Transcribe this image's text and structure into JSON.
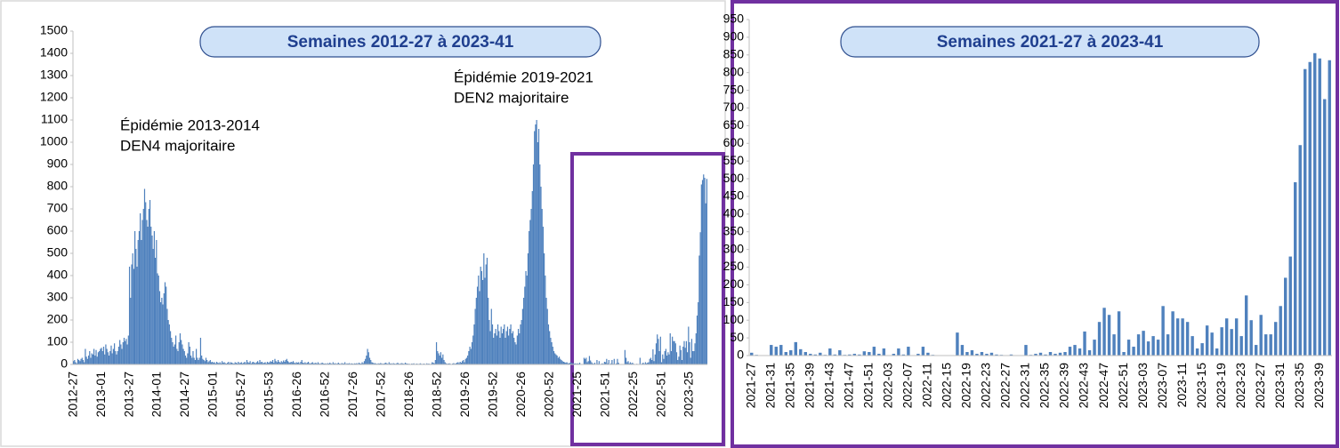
{
  "chart_data": [
    {
      "type": "bar",
      "title": "Semaines 2012-27 à 2023-41",
      "color": "#4f81bd",
      "annotations": [
        "Épidémie 2013-2014",
        "DEN4 majoritaire",
        "Épidémie 2019-2021",
        "DEN2 majoritaire"
      ],
      "ylim": [
        0,
        1500
      ],
      "yticks": [
        0,
        100,
        200,
        300,
        400,
        500,
        600,
        700,
        800,
        900,
        1000,
        1100,
        1200,
        1300,
        1400,
        1500
      ],
      "categories": [
        "2012-27",
        null,
        null,
        null,
        null,
        null,
        null,
        null,
        null,
        null,
        null,
        null,
        null,
        null,
        null,
        null,
        null,
        null,
        null,
        null,
        null,
        null,
        null,
        null,
        null,
        null,
        "2013-01",
        null,
        null,
        null,
        null,
        null,
        null,
        null,
        null,
        null,
        null,
        null,
        null,
        null,
        null,
        null,
        null,
        null,
        null,
        null,
        null,
        null,
        null,
        null,
        null,
        null,
        "2013-27",
        null,
        null,
        null,
        null,
        null,
        null,
        null,
        null,
        null,
        null,
        null,
        null,
        null,
        null,
        null,
        null,
        null,
        null,
        null,
        null,
        null,
        null,
        null,
        null,
        null,
        "2014-01",
        null,
        null,
        null,
        null,
        null,
        null,
        null,
        null,
        null,
        null,
        null,
        null,
        null,
        null,
        null,
        null,
        null,
        null,
        null,
        null,
        null,
        null,
        null,
        null,
        null,
        "2014-27",
        null,
        null,
        null,
        null,
        null,
        null,
        null,
        null,
        null,
        null,
        null,
        null,
        null,
        null,
        null,
        null,
        null,
        null,
        null,
        null,
        null,
        null,
        null,
        null,
        null,
        "2015-01",
        null,
        null,
        null,
        null,
        null,
        null,
        null,
        null,
        null,
        null,
        null,
        null,
        null,
        null,
        null,
        null,
        null,
        null,
        null,
        null,
        null,
        null,
        null,
        null,
        null,
        "2015-27",
        null,
        null,
        null,
        null,
        null,
        null,
        null,
        null,
        null,
        null,
        null,
        null,
        null,
        null,
        null,
        null,
        null,
        null,
        null,
        null,
        null,
        null,
        null,
        null,
        null,
        "2015-53",
        null,
        null,
        null,
        null,
        null,
        null,
        null,
        null,
        null,
        null,
        null,
        null,
        null,
        null,
        null,
        null,
        null,
        null,
        null,
        null,
        null,
        null,
        null,
        null,
        null,
        "2016-26",
        null,
        null,
        null,
        null,
        null,
        null,
        null,
        null,
        null,
        null,
        null,
        null,
        null,
        null,
        null,
        null,
        null,
        null,
        null,
        null,
        null,
        null,
        null,
        null,
        null,
        "2016-52",
        null,
        null,
        null,
        null,
        null,
        null,
        null,
        null,
        null,
        null,
        null,
        null,
        null,
        null,
        null,
        null,
        null,
        null,
        null,
        null,
        null,
        null,
        null,
        null,
        null,
        "2017-26",
        null,
        null,
        null,
        null,
        null,
        null,
        null,
        null,
        null,
        null,
        null,
        null,
        null,
        null,
        null,
        null,
        null,
        null,
        null,
        null,
        null,
        null,
        null,
        null,
        null,
        "2017-52",
        null,
        null,
        null,
        null,
        null,
        null,
        null,
        null,
        null,
        null,
        null,
        null,
        null,
        null,
        null,
        null,
        null,
        null,
        null,
        null,
        null,
        null,
        null,
        null,
        null,
        "2018-26",
        null,
        null,
        null,
        null,
        null,
        null,
        null,
        null,
        null,
        null,
        null,
        null,
        null,
        null,
        null,
        null,
        null,
        null,
        null,
        null,
        null,
        null,
        null,
        null,
        null,
        "2018-52",
        null,
        null,
        null,
        null,
        null,
        null,
        null,
        null,
        null,
        null,
        null,
        null,
        null,
        null,
        null,
        null,
        null,
        null,
        null,
        null,
        null,
        null,
        null,
        null,
        null,
        "2019-26",
        null,
        null,
        null,
        null,
        null,
        null,
        null,
        null,
        null,
        null,
        null,
        null,
        null,
        null,
        null,
        null,
        null,
        null,
        null,
        null,
        null,
        null,
        null,
        null,
        null,
        "2019-52",
        null,
        null,
        null,
        null,
        null,
        null,
        null,
        null,
        null,
        null,
        null,
        null,
        null,
        null,
        null,
        null,
        null,
        null,
        null,
        null,
        null,
        null,
        null,
        null,
        null,
        "2020-26",
        null,
        null,
        null,
        null,
        null,
        null,
        null,
        null,
        null,
        null,
        null,
        null,
        null,
        null,
        null,
        null,
        null,
        null,
        null,
        null,
        null,
        null,
        null,
        null,
        null,
        "2020-52",
        null,
        null,
        null,
        null,
        null,
        null,
        null,
        null,
        null,
        null,
        null,
        null,
        null,
        null,
        null,
        null,
        null,
        null,
        null,
        null,
        null,
        null,
        null,
        null,
        null,
        "2021-25",
        null,
        null,
        null,
        null,
        null,
        null,
        null,
        null,
        null,
        null,
        null,
        null,
        null,
        null,
        null,
        null,
        null,
        null,
        null,
        null,
        null,
        null,
        null,
        null,
        null,
        "2021-51",
        null,
        null,
        null,
        null,
        null,
        null,
        null,
        null,
        null,
        null,
        null,
        null,
        null,
        null,
        null,
        null,
        null,
        null,
        null,
        null,
        null,
        null,
        null,
        null,
        null,
        "2022-25",
        null,
        null,
        null,
        null,
        null,
        null,
        null,
        null,
        null,
        null,
        null,
        null,
        null,
        null,
        null,
        null,
        null,
        null,
        null,
        null,
        null,
        null,
        null,
        null,
        null,
        "2022-51",
        null,
        null,
        null,
        null,
        null,
        null,
        null,
        null,
        null,
        null,
        null,
        null,
        null,
        null,
        null,
        null,
        null,
        null,
        null,
        null,
        null,
        null,
        null,
        null,
        null,
        "2023-25",
        null,
        null,
        null,
        null,
        null,
        null,
        null,
        null,
        null,
        null,
        null,
        null,
        null,
        null,
        null,
        null
      ],
      "values": [
        15,
        20,
        10,
        5,
        25,
        20,
        15,
        25,
        30,
        20,
        10,
        70,
        35,
        25,
        40,
        60,
        30,
        50,
        45,
        70,
        40,
        65,
        35,
        55,
        60,
        70,
        75,
        60,
        80,
        45,
        90,
        70,
        55,
        40,
        60,
        85,
        50,
        70,
        95,
        60,
        45,
        60,
        80,
        110,
        90,
        70,
        100,
        120,
        105,
        115,
        90,
        130,
        440,
        300,
        450,
        500,
        430,
        600,
        520,
        440,
        560,
        600,
        680,
        560,
        650,
        700,
        790,
        730,
        650,
        620,
        700,
        740,
        620,
        580,
        520,
        600,
        480,
        560,
        410,
        400,
        330,
        280,
        300,
        270,
        320,
        370,
        350,
        250,
        200,
        180,
        150,
        120,
        100,
        80,
        90,
        130,
        70,
        60,
        100,
        140,
        110,
        90,
        70,
        60,
        40,
        30,
        50,
        100,
        80,
        40,
        30,
        60,
        30,
        20,
        70,
        30,
        20,
        30,
        120,
        40,
        25,
        20,
        15,
        30,
        20,
        10,
        15,
        20,
        10,
        12,
        8,
        10,
        5,
        12,
        8,
        6,
        10,
        5,
        15,
        8,
        10,
        6,
        4,
        8,
        12,
        5,
        10,
        8,
        6,
        4,
        10,
        8,
        5,
        12,
        6,
        8,
        10,
        5,
        8,
        12,
        6,
        20,
        10,
        8,
        15,
        5,
        10,
        12,
        8,
        6,
        10,
        15,
        8,
        20,
        10,
        12,
        6,
        8,
        10,
        5,
        12,
        8,
        10,
        15,
        12,
        20,
        8,
        25,
        15,
        10,
        20,
        12,
        8,
        15,
        10,
        18,
        12,
        20,
        25,
        15,
        10,
        8,
        12,
        10,
        15,
        8,
        6,
        10,
        8,
        10,
        5,
        12,
        20,
        8,
        6,
        10,
        5,
        8,
        12,
        6,
        4,
        8,
        10,
        5,
        6,
        8,
        4,
        10,
        5,
        3,
        6,
        8,
        5,
        4,
        5,
        3,
        6,
        4,
        8,
        5,
        3,
        10,
        4,
        6,
        3,
        5,
        8,
        4,
        3,
        6,
        5,
        4,
        10,
        3,
        5,
        4,
        6,
        3,
        5,
        4,
        3,
        5,
        4,
        6,
        3,
        8,
        5,
        4,
        10,
        6,
        15,
        25,
        40,
        70,
        55,
        30,
        20,
        10,
        8,
        5,
        6,
        4,
        3,
        5,
        4,
        6,
        5,
        3,
        4,
        6,
        8,
        5,
        3,
        10,
        4,
        5,
        3,
        6,
        4,
        3,
        5,
        8,
        4,
        3,
        5,
        6,
        4,
        3,
        8,
        5,
        4,
        3,
        3,
        2,
        4,
        3,
        5,
        2,
        3,
        4,
        2,
        3,
        5,
        3,
        2,
        4,
        3,
        2,
        5,
        3,
        4,
        2,
        3,
        10,
        8,
        5,
        20,
        100,
        60,
        50,
        40,
        55,
        30,
        45,
        20,
        10,
        5,
        3,
        4,
        5,
        3,
        2,
        4,
        6,
        3,
        5,
        8,
        10,
        6,
        12,
        8,
        15,
        20,
        10,
        25,
        30,
        40,
        60,
        80,
        70,
        100,
        130,
        180,
        250,
        300,
        350,
        400,
        330,
        440,
        420,
        380,
        500,
        390,
        450,
        480,
        300,
        200,
        150,
        250,
        180,
        120,
        140,
        160,
        130,
        180,
        150,
        120,
        170,
        140,
        160,
        180,
        120,
        150,
        170,
        130,
        160,
        180,
        140,
        150,
        120,
        100,
        90,
        130,
        160,
        140,
        180,
        200,
        250,
        300,
        350,
        420,
        400,
        500,
        600,
        650,
        700,
        780,
        900,
        1050,
        1080,
        1100,
        1000,
        1060,
        900,
        800,
        700,
        620,
        500,
        400,
        300,
        250,
        180,
        150,
        120,
        100,
        80,
        60,
        50,
        45,
        40,
        30,
        35,
        25,
        20,
        15,
        12,
        10,
        8,
        10,
        6,
        5,
        8,
        10,
        5,
        6,
        4,
        5,
        3,
        5,
        3,
        8,
        2,
        0,
        0,
        30,
        25,
        30,
        10,
        15,
        38,
        18,
        10,
        5,
        3,
        8,
        2,
        20,
        3,
        15,
        2,
        3,
        5,
        3,
        12,
        10,
        25,
        5,
        20,
        0,
        5,
        20,
        3,
        25,
        0,
        5,
        25,
        8,
        2,
        0,
        0,
        0,
        0,
        65,
        30,
        10,
        15,
        5,
        10,
        5,
        8,
        3,
        2,
        0,
        3,
        0,
        0,
        30,
        2,
        5,
        8,
        3,
        10,
        5,
        8,
        10,
        25,
        30,
        20,
        68,
        15,
        45,
        95,
        135,
        115,
        60,
        125,
        10,
        45,
        25,
        60,
        70,
        40,
        55,
        45,
        140,
        60,
        125,
        105,
        105,
        95,
        55,
        20,
        35,
        85,
        65,
        20,
        80,
        105,
        75,
        105,
        55,
        170,
        100,
        30,
        115,
        60,
        60,
        95,
        140,
        220,
        280,
        490,
        595,
        810,
        830,
        855,
        840,
        725,
        835
      ]
    },
    {
      "type": "bar",
      "title": "Semaines 2021-27 à 2023-41",
      "color": "#4f81bd",
      "ylim": [
        0,
        950
      ],
      "yticks": [
        0,
        50,
        100,
        150,
        200,
        250,
        300,
        350,
        400,
        450,
        500,
        550,
        600,
        650,
        700,
        750,
        800,
        850,
        900,
        950
      ],
      "categories": [
        "2021-27",
        null,
        null,
        null,
        "2021-31",
        null,
        null,
        null,
        "2021-35",
        null,
        null,
        null,
        "2021-39",
        null,
        null,
        null,
        "2021-43",
        null,
        null,
        null,
        "2021-47",
        null,
        null,
        null,
        "2021-51",
        null,
        null,
        null,
        "2022-03",
        null,
        null,
        null,
        "2022-07",
        null,
        null,
        null,
        "2022-11",
        null,
        null,
        null,
        "2022-15",
        null,
        null,
        null,
        "2022-19",
        null,
        null,
        null,
        "2022-23",
        null,
        null,
        null,
        "2022-27",
        null,
        null,
        null,
        "2022-31",
        null,
        null,
        null,
        "2022-35",
        null,
        null,
        null,
        "2022-39",
        null,
        null,
        null,
        "2022-43",
        null,
        null,
        null,
        "2022-47",
        null,
        null,
        null,
        "2022-51",
        null,
        null,
        null,
        "2023-03",
        null,
        null,
        null,
        "2023-07",
        null,
        null,
        null,
        "2023-11",
        null,
        null,
        null,
        "2023-15",
        null,
        null,
        null,
        "2023-19",
        null,
        null,
        null,
        "2023-23",
        null,
        null,
        null,
        "2023-27",
        null,
        null,
        null,
        "2023-31",
        null,
        null,
        null,
        "2023-35",
        null,
        null,
        null,
        "2023-39",
        null,
        null
      ],
      "values": [
        8,
        2,
        0,
        0,
        30,
        25,
        30,
        10,
        15,
        38,
        18,
        10,
        5,
        3,
        8,
        2,
        20,
        3,
        15,
        2,
        3,
        5,
        3,
        12,
        10,
        25,
        5,
        20,
        0,
        5,
        20,
        3,
        25,
        0,
        5,
        25,
        8,
        2,
        0,
        0,
        0,
        0,
        65,
        30,
        10,
        15,
        5,
        10,
        5,
        8,
        3,
        2,
        0,
        3,
        0,
        0,
        30,
        2,
        5,
        8,
        3,
        10,
        5,
        8,
        10,
        25,
        30,
        20,
        68,
        15,
        45,
        95,
        135,
        115,
        60,
        125,
        10,
        45,
        25,
        60,
        70,
        40,
        55,
        45,
        140,
        60,
        125,
        105,
        105,
        95,
        55,
        20,
        35,
        85,
        65,
        20,
        80,
        105,
        75,
        105,
        55,
        170,
        100,
        30,
        115,
        60,
        60,
        95,
        140,
        220,
        280,
        490,
        595,
        810,
        830,
        855,
        840,
        725,
        835
      ]
    }
  ]
}
